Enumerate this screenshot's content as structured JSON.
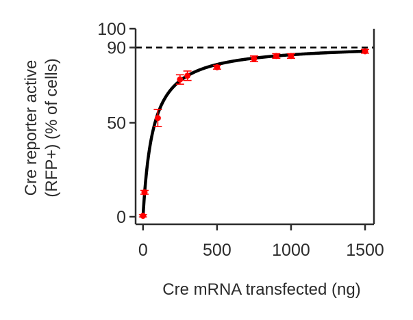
{
  "chart_data": {
    "type": "scatter",
    "title": "",
    "xlabel": "Cre mRNA transfected (ng)",
    "ylabel_lines": [
      "Cre reporter active",
      "(RFP+) (% of cells)"
    ],
    "xlim": [
      -50,
      1560
    ],
    "ylim": [
      -4,
      100
    ],
    "xticks": [
      0,
      500,
      1000,
      1500
    ],
    "yticks": [
      0,
      50,
      90,
      100
    ],
    "grid": false,
    "legend": "none",
    "reference_line": {
      "y": 90,
      "style": "dashed",
      "color": "#000000"
    },
    "series": [
      {
        "kind": "points_with_error_bars",
        "color": "#ff0000",
        "x": [
          0,
          10,
          100,
          250,
          300,
          500,
          750,
          900,
          1000,
          1500
        ],
        "y": [
          0.5,
          13,
          52.5,
          73,
          75,
          79.5,
          84,
          85.5,
          85.5,
          88
        ],
        "err": [
          0.6,
          1.0,
          4.5,
          2.5,
          2.5,
          1.0,
          1.5,
          1.2,
          1.2,
          1.0
        ]
      },
      {
        "kind": "fit_curve",
        "color": "#000000",
        "model": "y = ymax * x / (k + x)",
        "ymax": 92,
        "k": 68,
        "x_range": [
          0,
          1500
        ]
      }
    ]
  },
  "colors": {
    "axis": "#2b2b2b",
    "points": "#ff0000",
    "fit": "#000000"
  }
}
